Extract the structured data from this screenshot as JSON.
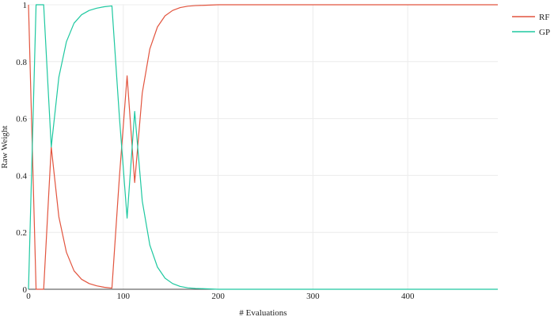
{
  "chart_data": {
    "type": "line",
    "title": "",
    "xlabel": "# Evaluations",
    "ylabel": "Raw Weight",
    "xlim": [
      0,
      495
    ],
    "ylim": [
      0,
      1
    ],
    "x_ticks": [
      0,
      100,
      200,
      300,
      400
    ],
    "x_tick_labels": [
      "0",
      "100",
      "200",
      "300",
      "400"
    ],
    "y_ticks": [
      0,
      0.2,
      0.4,
      0.6,
      0.8,
      1
    ],
    "y_tick_labels": [
      "0",
      "0.2",
      "0.4",
      "0.6",
      "0.8",
      "1"
    ],
    "grid": true,
    "legend_position": "top-right",
    "x": [
      0,
      8,
      16,
      24,
      32,
      40,
      48,
      56,
      64,
      72,
      80,
      88,
      96,
      104,
      112,
      120,
      128,
      136,
      144,
      152,
      160,
      168,
      176,
      184,
      192,
      200,
      216,
      240,
      280,
      320,
      360,
      400,
      440,
      480,
      495
    ],
    "series": [
      {
        "name": "RF",
        "color": "#e2543e",
        "values": [
          1.0,
          0.0,
          0.0,
          0.5,
          0.255,
          0.13,
          0.065,
          0.035,
          0.02,
          0.012,
          0.007,
          0.004,
          0.4,
          0.75,
          0.375,
          0.69,
          0.845,
          0.922,
          0.961,
          0.98,
          0.99,
          0.995,
          0.997,
          0.998,
          0.999,
          1.0,
          1.0,
          1.0,
          1.0,
          1.0,
          1.0,
          1.0,
          1.0,
          1.0,
          1.0
        ]
      },
      {
        "name": "GP",
        "color": "#1ec8a0",
        "values": [
          0.0,
          1.0,
          1.0,
          0.5,
          0.745,
          0.87,
          0.935,
          0.965,
          0.98,
          0.988,
          0.993,
          0.996,
          0.6,
          0.25,
          0.625,
          0.31,
          0.155,
          0.078,
          0.039,
          0.02,
          0.01,
          0.005,
          0.003,
          0.002,
          0.001,
          0.0,
          0.0,
          0.0,
          0.0,
          0.0,
          0.0,
          0.0,
          0.0,
          0.0,
          0.0
        ]
      }
    ]
  }
}
